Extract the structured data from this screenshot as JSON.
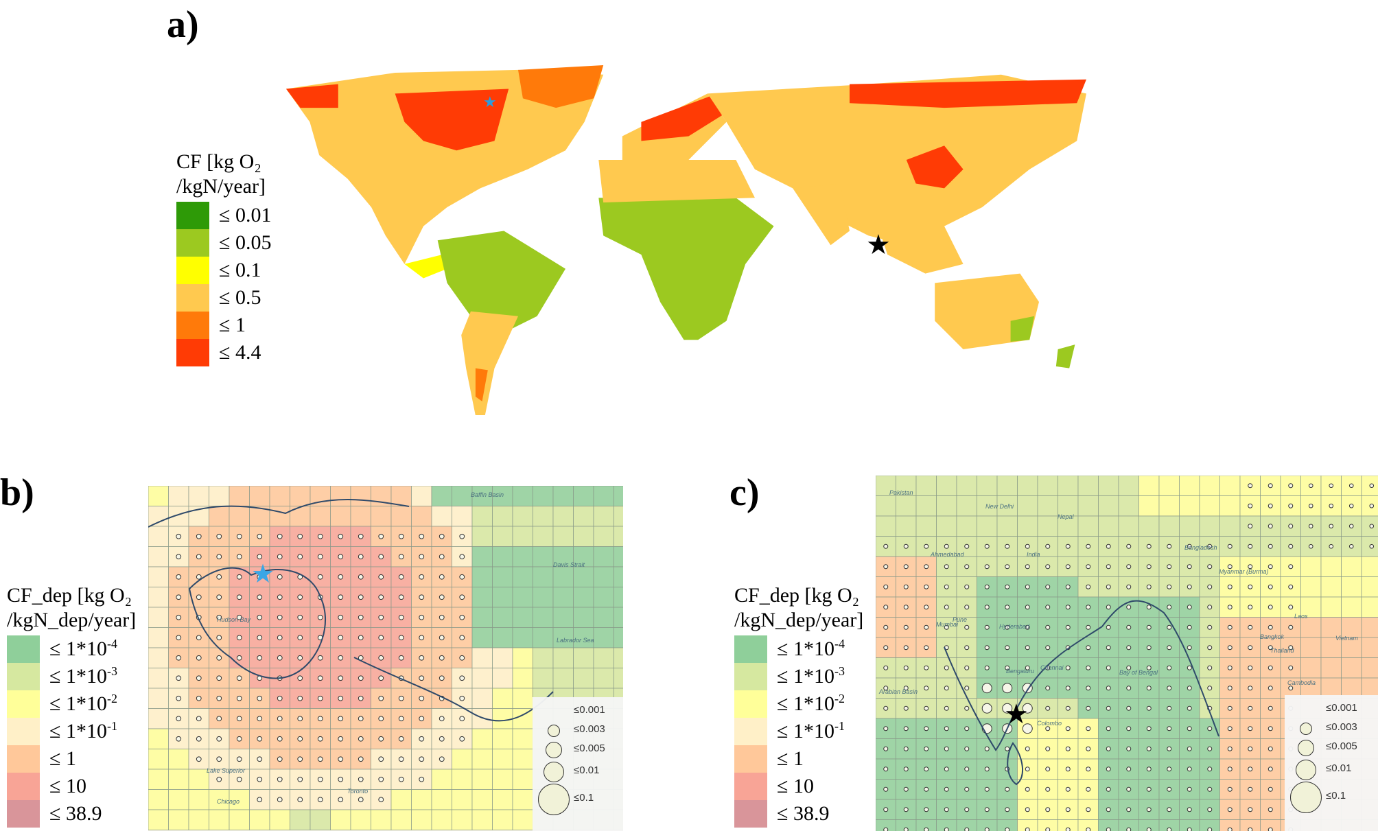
{
  "panel_a": {
    "label": "a)",
    "legend": {
      "title": "CF [kg O₂\n/kgN/year]",
      "items": [
        {
          "label": "≤ 0.01",
          "color": "#2e9a07"
        },
        {
          "label": "≤ 0.05",
          "color": "#9cc920"
        },
        {
          "label": "≤ 0.1",
          "color": "#ffff00"
        },
        {
          "label": "≤ 0.5",
          "color": "#ffc94f"
        },
        {
          "label": "≤ 1",
          "color": "#ff7a0a"
        },
        {
          "label": "≤ 4.4",
          "color": "#ff3b05"
        }
      ]
    },
    "markers": [
      {
        "name": "lake-winnipeg-marker",
        "symbol": "★",
        "color": "#2a9de0"
      },
      {
        "name": "sri-lanka-marker",
        "symbol": "★",
        "color": "#000000"
      }
    ]
  },
  "panel_b": {
    "label": "b)",
    "legend": {
      "title": "CF_dep [kg O₂\n/kgN_dep/year]",
      "items": [
        {
          "base": "≤ 1*10",
          "exp": "-4",
          "color": "#8fcf9a"
        },
        {
          "base": "≤ 1*10",
          "exp": "-3",
          "color": "#d6e8a0"
        },
        {
          "base": "≤ 1*10",
          "exp": "-2",
          "color": "#ffff99"
        },
        {
          "base": "≤ 1*10",
          "exp": "-1",
          "color": "#fff0c8"
        },
        {
          "base": "≤ 1",
          "exp": "",
          "color": "#ffc89a"
        },
        {
          "base": "≤ 10",
          "exp": "",
          "color": "#f8a496"
        },
        {
          "base": "≤ 38.9",
          "exp": "",
          "color": "#d9959a"
        }
      ]
    },
    "size_legend": [
      "≤0.001",
      "≤0.003",
      "≤0.005",
      "≤0.01",
      "≤0.1"
    ],
    "places": [
      "Baffin Basin",
      "Davis Strait",
      "Labrador Sea",
      "Hudson Bay",
      "Lake Superior",
      "Chicago",
      "Toronto"
    ]
  },
  "panel_c": {
    "label": "c)",
    "legend": {
      "title": "CF_dep [kg O₂\n/kgN_dep/year]",
      "items": [
        {
          "base": "≤ 1*10",
          "exp": "-4",
          "color": "#8fcf9a"
        },
        {
          "base": "≤ 1*10",
          "exp": "-3",
          "color": "#d6e8a0"
        },
        {
          "base": "≤ 1*10",
          "exp": "-2",
          "color": "#ffff99"
        },
        {
          "base": "≤ 1*10",
          "exp": "-1",
          "color": "#fff0c8"
        },
        {
          "base": "≤ 1",
          "exp": "",
          "color": "#ffc89a"
        },
        {
          "base": "≤ 10",
          "exp": "",
          "color": "#f8a496"
        },
        {
          "base": "≤ 38.9",
          "exp": "",
          "color": "#d9959a"
        }
      ]
    },
    "size_legend": [
      "≤0.001",
      "≤0.003",
      "≤0.005",
      "≤0.01",
      "≤0.1"
    ],
    "places": [
      "Pakistan",
      "New Delhi",
      "Nepal",
      "India",
      "Bangladesh",
      "Myanmar (Burma)",
      "Ahmedabad",
      "Mumbai",
      "Pune",
      "Hyderabad",
      "Bengaluru",
      "Chennai",
      "Bay of Bengal",
      "Arabian Basin",
      "Colombo",
      "Thailand",
      "Bangkok",
      "Cambodia",
      "Laos",
      "Vietnam"
    ]
  }
}
